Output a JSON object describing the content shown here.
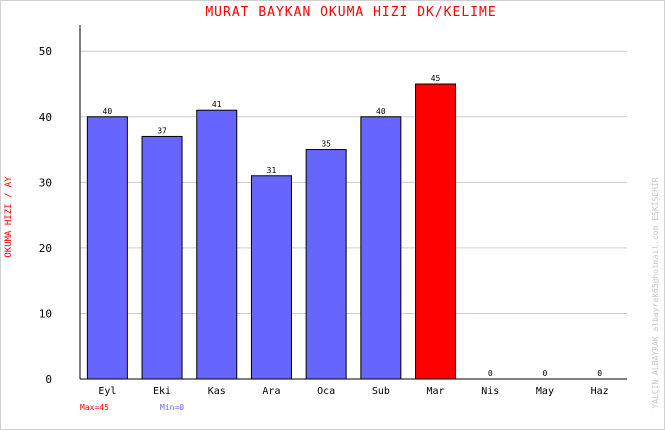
{
  "chart_data": {
    "type": "bar",
    "title": "MURAT BAYKAN   OKUMA HIZI  DK/KELIME",
    "ylabel": "OKUMA HIZI / AY",
    "xlabel": "",
    "categories": [
      "Eyl",
      "Eki",
      "Kas",
      "Ara",
      "Oca",
      "Sub",
      "Mar",
      "Nis",
      "May",
      "Haz"
    ],
    "values": [
      40,
      37,
      41,
      31,
      35,
      40,
      45,
      0,
      0,
      0
    ],
    "value_labels": [
      "40",
      "37",
      "41",
      "31",
      "35",
      "40",
      "45",
      "0",
      "0",
      "0"
    ],
    "y_ticks": [
      "0",
      "10",
      "20",
      "30",
      "40",
      "50"
    ],
    "ylim": [
      0,
      54
    ],
    "grid": true,
    "max_label": "Max=45",
    "min_label": "Min=0",
    "side_text": "YALÇIN ALBAYRAK   albayrak65@hotmail.com   ESKİŞEHİR",
    "colors": {
      "bar": "#6666ff",
      "max_bar": "#ff0000",
      "title": "#ff0000",
      "min_text": "#6666ff",
      "max_text": "#ff0000"
    }
  }
}
